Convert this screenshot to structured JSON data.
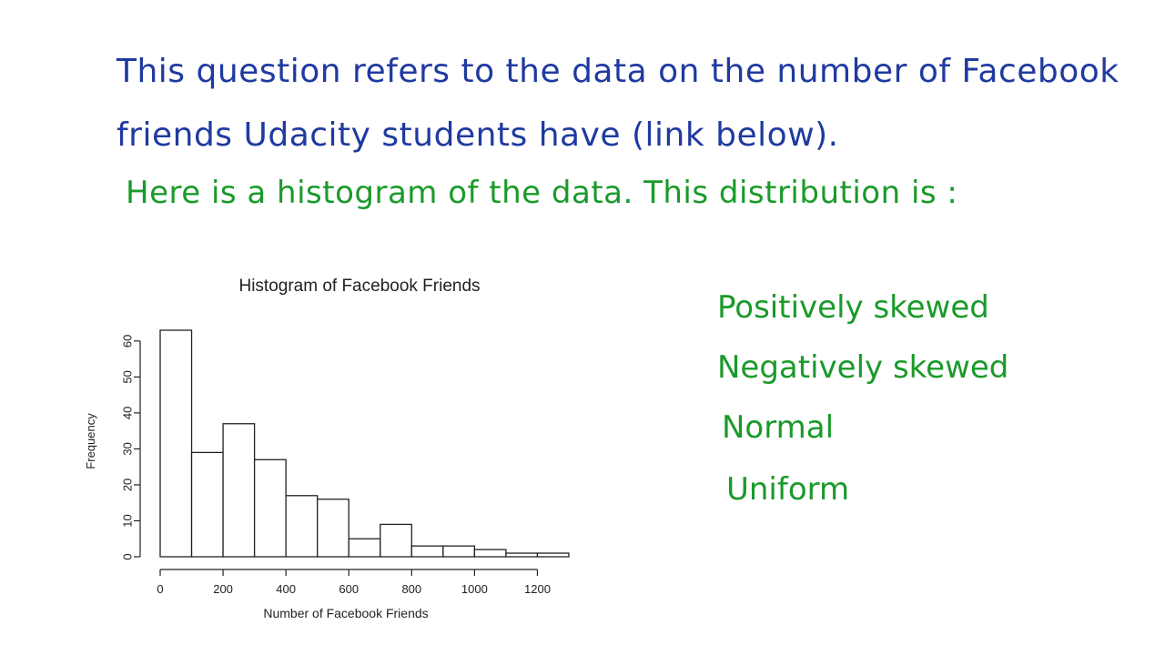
{
  "question": {
    "line1": "This question refers to the data on the number of Facebook",
    "line2": "friends Udacity students have (link below).",
    "line3": "Here is a histogram of the data. This distribution is :"
  },
  "choices": [
    "Positively skewed",
    "Negatively skewed",
    "Normal",
    "Uniform"
  ],
  "colors": {
    "question": "#1f3aa0",
    "answer": "#1a9a2a"
  },
  "chart_data": {
    "type": "bar",
    "title": "Histogram of Facebook Friends",
    "xlabel": "Number of Facebook Friends",
    "ylabel": "Frequency",
    "bins": [
      {
        "x0": 0,
        "x1": 100,
        "count": 63
      },
      {
        "x0": 100,
        "x1": 200,
        "count": 29
      },
      {
        "x0": 200,
        "x1": 300,
        "count": 37
      },
      {
        "x0": 300,
        "x1": 400,
        "count": 27
      },
      {
        "x0": 400,
        "x1": 500,
        "count": 17
      },
      {
        "x0": 500,
        "x1": 600,
        "count": 16
      },
      {
        "x0": 600,
        "x1": 700,
        "count": 5
      },
      {
        "x0": 700,
        "x1": 800,
        "count": 9
      },
      {
        "x0": 800,
        "x1": 900,
        "count": 3
      },
      {
        "x0": 900,
        "x1": 1000,
        "count": 3
      },
      {
        "x0": 1000,
        "x1": 1100,
        "count": 2
      },
      {
        "x0": 1100,
        "x1": 1200,
        "count": 1
      },
      {
        "x0": 1200,
        "x1": 1300,
        "count": 1
      }
    ],
    "xticks": [
      0,
      200,
      400,
      600,
      800,
      1000,
      1200
    ],
    "yticks": [
      0,
      10,
      20,
      30,
      40,
      50,
      60
    ],
    "xlim": [
      0,
      1300
    ],
    "ylim": [
      0,
      63
    ],
    "grid": false
  }
}
